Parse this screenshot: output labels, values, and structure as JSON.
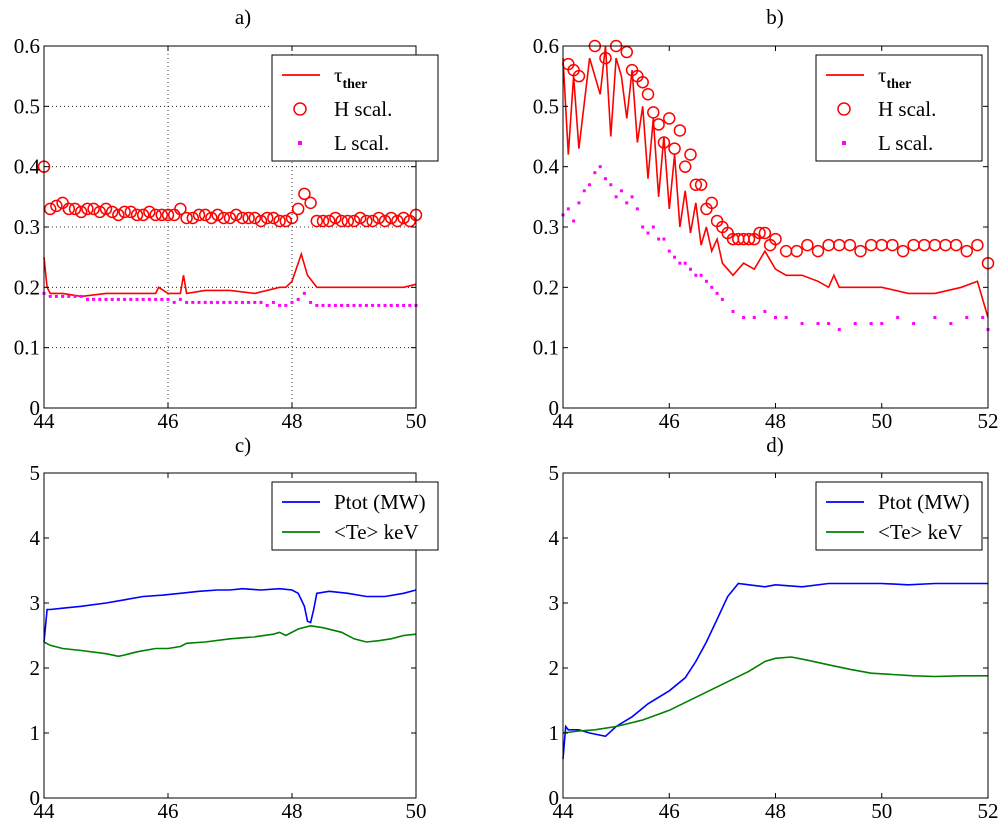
{
  "chart_data": [
    {
      "panel": "a",
      "type": "line",
      "title": "a)",
      "xlim": [
        44,
        50
      ],
      "ylim": [
        0,
        0.6
      ],
      "xticks": [
        "44",
        "46",
        "48",
        "50"
      ],
      "yticks": [
        "0",
        "0.1",
        "0.2",
        "0.3",
        "0.4",
        "0.5",
        "0.6"
      ],
      "grid": true,
      "legend_position": "top-right",
      "series": [
        {
          "name": "τ",
          "subscript": "ther",
          "kind": "line",
          "color": "#ff0000",
          "x": [
            44.0,
            44.05,
            44.1,
            44.3,
            44.6,
            45.0,
            45.4,
            45.8,
            45.85,
            46.0,
            46.2,
            46.25,
            46.3,
            46.6,
            47.0,
            47.4,
            47.8,
            47.9,
            48.0,
            48.15,
            48.25,
            48.4,
            48.6,
            49.0,
            49.4,
            49.8,
            50.0
          ],
          "y": [
            0.25,
            0.2,
            0.19,
            0.19,
            0.185,
            0.19,
            0.19,
            0.19,
            0.2,
            0.19,
            0.19,
            0.22,
            0.19,
            0.195,
            0.195,
            0.19,
            0.2,
            0.2,
            0.21,
            0.255,
            0.22,
            0.2,
            0.2,
            0.2,
            0.2,
            0.2,
            0.205
          ]
        },
        {
          "name": "H scal.",
          "kind": "circle",
          "color": "#ff0000",
          "x": [
            44.0,
            44.1,
            44.2,
            44.3,
            44.4,
            44.5,
            44.6,
            44.7,
            44.8,
            44.9,
            45.0,
            45.1,
            45.2,
            45.3,
            45.4,
            45.5,
            45.6,
            45.7,
            45.8,
            45.9,
            46.0,
            46.1,
            46.2,
            46.3,
            46.4,
            46.5,
            46.6,
            46.7,
            46.8,
            46.9,
            47.0,
            47.1,
            47.2,
            47.3,
            47.4,
            47.5,
            47.6,
            47.7,
            47.8,
            47.9,
            48.0,
            48.1,
            48.2,
            48.3,
            48.4,
            48.5,
            48.6,
            48.7,
            48.8,
            48.9,
            49.0,
            49.1,
            49.2,
            49.3,
            49.4,
            49.5,
            49.6,
            49.7,
            49.8,
            49.9,
            50.0
          ],
          "y": [
            0.4,
            0.33,
            0.335,
            0.34,
            0.33,
            0.33,
            0.325,
            0.33,
            0.33,
            0.325,
            0.33,
            0.325,
            0.32,
            0.325,
            0.325,
            0.32,
            0.32,
            0.325,
            0.32,
            0.32,
            0.32,
            0.32,
            0.33,
            0.315,
            0.315,
            0.32,
            0.32,
            0.315,
            0.32,
            0.315,
            0.315,
            0.32,
            0.315,
            0.315,
            0.315,
            0.31,
            0.315,
            0.315,
            0.31,
            0.31,
            0.315,
            0.33,
            0.355,
            0.34,
            0.31,
            0.31,
            0.31,
            0.315,
            0.31,
            0.31,
            0.31,
            0.315,
            0.31,
            0.31,
            0.315,
            0.31,
            0.315,
            0.31,
            0.315,
            0.31,
            0.32
          ]
        },
        {
          "name": "L scal.",
          "kind": "dot",
          "color": "#ff00ff",
          "x": [
            44.0,
            44.1,
            44.2,
            44.3,
            44.4,
            44.5,
            44.6,
            44.7,
            44.8,
            44.9,
            45.0,
            45.1,
            45.2,
            45.3,
            45.4,
            45.5,
            45.6,
            45.7,
            45.8,
            45.9,
            46.0,
            46.1,
            46.2,
            46.3,
            46.4,
            46.5,
            46.6,
            46.7,
            46.8,
            46.9,
            47.0,
            47.1,
            47.2,
            47.3,
            47.4,
            47.5,
            47.6,
            47.7,
            47.8,
            47.9,
            48.0,
            48.1,
            48.2,
            48.3,
            48.4,
            48.5,
            48.6,
            48.7,
            48.8,
            48.9,
            49.0,
            49.1,
            49.2,
            49.3,
            49.4,
            49.5,
            49.6,
            49.7,
            49.8,
            49.9,
            50.0
          ],
          "y": [
            0.19,
            0.185,
            0.185,
            0.185,
            0.185,
            0.185,
            0.185,
            0.18,
            0.18,
            0.18,
            0.18,
            0.18,
            0.18,
            0.18,
            0.18,
            0.18,
            0.18,
            0.18,
            0.18,
            0.18,
            0.18,
            0.175,
            0.18,
            0.175,
            0.175,
            0.175,
            0.175,
            0.175,
            0.175,
            0.175,
            0.175,
            0.175,
            0.175,
            0.175,
            0.175,
            0.175,
            0.17,
            0.175,
            0.17,
            0.17,
            0.175,
            0.18,
            0.19,
            0.175,
            0.17,
            0.17,
            0.17,
            0.17,
            0.17,
            0.17,
            0.17,
            0.17,
            0.17,
            0.17,
            0.17,
            0.17,
            0.17,
            0.17,
            0.17,
            0.17,
            0.17
          ]
        }
      ]
    },
    {
      "panel": "b",
      "type": "line",
      "title": "b)",
      "xlim": [
        44,
        52
      ],
      "ylim": [
        0,
        0.6
      ],
      "xticks": [
        "44",
        "46",
        "48",
        "50",
        "52"
      ],
      "yticks": [
        "0",
        "0.1",
        "0.2",
        "0.3",
        "0.4",
        "0.5",
        "0.6"
      ],
      "grid": false,
      "legend_position": "top-right",
      "series": [
        {
          "name": "τ",
          "subscript": "ther",
          "kind": "line",
          "color": "#ff0000",
          "x": [
            44.0,
            44.1,
            44.2,
            44.3,
            44.5,
            44.7,
            44.8,
            44.9,
            45.0,
            45.1,
            45.2,
            45.3,
            45.4,
            45.5,
            45.6,
            45.7,
            45.8,
            45.9,
            46.0,
            46.1,
            46.2,
            46.3,
            46.4,
            46.5,
            46.6,
            46.7,
            46.8,
            46.9,
            47.0,
            47.2,
            47.4,
            47.6,
            47.8,
            48.0,
            48.2,
            48.5,
            48.8,
            49.0,
            49.1,
            49.2,
            49.5,
            50.0,
            50.5,
            51.0,
            51.5,
            51.8,
            52.0
          ],
          "y": [
            0.58,
            0.42,
            0.55,
            0.43,
            0.58,
            0.52,
            0.6,
            0.45,
            0.58,
            0.55,
            0.48,
            0.56,
            0.44,
            0.5,
            0.38,
            0.48,
            0.35,
            0.45,
            0.33,
            0.42,
            0.3,
            0.36,
            0.29,
            0.34,
            0.27,
            0.3,
            0.26,
            0.28,
            0.24,
            0.22,
            0.24,
            0.23,
            0.26,
            0.23,
            0.22,
            0.22,
            0.21,
            0.2,
            0.22,
            0.2,
            0.2,
            0.2,
            0.19,
            0.19,
            0.2,
            0.21,
            0.15
          ]
        },
        {
          "name": "H scal.",
          "kind": "circle",
          "color": "#ff0000",
          "x": [
            44.1,
            44.2,
            44.3,
            44.6,
            44.8,
            45.0,
            45.2,
            45.3,
            45.4,
            45.5,
            45.6,
            45.7,
            45.8,
            45.9,
            46.0,
            46.1,
            46.2,
            46.3,
            46.4,
            46.5,
            46.6,
            46.7,
            46.8,
            46.9,
            47.0,
            47.1,
            47.2,
            47.3,
            47.4,
            47.5,
            47.6,
            47.7,
            47.8,
            47.9,
            48.0,
            48.2,
            48.4,
            48.6,
            48.8,
            49.0,
            49.2,
            49.4,
            49.6,
            49.8,
            50.0,
            50.2,
            50.4,
            50.6,
            50.8,
            51.0,
            51.2,
            51.4,
            51.6,
            51.8,
            52.0
          ],
          "y": [
            0.57,
            0.56,
            0.55,
            0.6,
            0.58,
            0.6,
            0.59,
            0.56,
            0.55,
            0.54,
            0.52,
            0.49,
            0.47,
            0.44,
            0.48,
            0.43,
            0.46,
            0.4,
            0.42,
            0.37,
            0.37,
            0.33,
            0.34,
            0.31,
            0.3,
            0.29,
            0.28,
            0.28,
            0.28,
            0.28,
            0.28,
            0.29,
            0.29,
            0.27,
            0.28,
            0.26,
            0.26,
            0.27,
            0.26,
            0.27,
            0.27,
            0.27,
            0.26,
            0.27,
            0.27,
            0.27,
            0.26,
            0.27,
            0.27,
            0.27,
            0.27,
            0.27,
            0.26,
            0.27,
            0.24
          ]
        },
        {
          "name": "L scal.",
          "kind": "dot",
          "color": "#ff00ff",
          "x": [
            44.0,
            44.1,
            44.2,
            44.3,
            44.4,
            44.5,
            44.6,
            44.7,
            44.8,
            44.9,
            45.0,
            45.1,
            45.2,
            45.3,
            45.4,
            45.5,
            45.6,
            45.7,
            45.8,
            45.9,
            46.0,
            46.1,
            46.2,
            46.3,
            46.4,
            46.5,
            46.6,
            46.7,
            46.8,
            46.9,
            47.0,
            47.2,
            47.4,
            47.6,
            47.8,
            48.0,
            48.2,
            48.5,
            48.8,
            49.0,
            49.2,
            49.5,
            49.8,
            50.0,
            50.3,
            50.6,
            51.0,
            51.3,
            51.6,
            51.9,
            52.0
          ],
          "y": [
            0.32,
            0.33,
            0.31,
            0.34,
            0.36,
            0.37,
            0.39,
            0.4,
            0.38,
            0.37,
            0.35,
            0.36,
            0.34,
            0.35,
            0.33,
            0.3,
            0.29,
            0.3,
            0.28,
            0.28,
            0.26,
            0.25,
            0.24,
            0.24,
            0.23,
            0.22,
            0.22,
            0.21,
            0.2,
            0.19,
            0.18,
            0.16,
            0.15,
            0.15,
            0.16,
            0.15,
            0.15,
            0.14,
            0.14,
            0.14,
            0.13,
            0.14,
            0.14,
            0.14,
            0.15,
            0.14,
            0.15,
            0.14,
            0.15,
            0.15,
            0.13
          ]
        }
      ]
    },
    {
      "panel": "c",
      "type": "line",
      "title": "c)",
      "xlim": [
        44,
        50
      ],
      "ylim": [
        0,
        5
      ],
      "xticks": [
        "44",
        "46",
        "48",
        "50"
      ],
      "yticks": [
        "0",
        "1",
        "2",
        "3",
        "4",
        "5"
      ],
      "grid": false,
      "legend_position": "top-right",
      "series": [
        {
          "name": "Ptot (MW)",
          "kind": "line",
          "color": "#0000ff",
          "x": [
            44.0,
            44.05,
            44.1,
            44.3,
            44.6,
            45.0,
            45.3,
            45.6,
            45.9,
            46.2,
            46.5,
            46.8,
            47.0,
            47.2,
            47.5,
            47.8,
            48.0,
            48.1,
            48.2,
            48.25,
            48.3,
            48.35,
            48.4,
            48.6,
            48.9,
            49.2,
            49.5,
            49.8,
            50.0
          ],
          "y": [
            2.4,
            2.9,
            2.9,
            2.92,
            2.95,
            3.0,
            3.05,
            3.1,
            3.12,
            3.15,
            3.18,
            3.2,
            3.2,
            3.22,
            3.2,
            3.22,
            3.2,
            3.15,
            2.95,
            2.72,
            2.7,
            2.9,
            3.15,
            3.18,
            3.15,
            3.1,
            3.1,
            3.15,
            3.2
          ]
        },
        {
          "name": "<Te> keV",
          "kind": "line",
          "color": "#008000",
          "x": [
            44.0,
            44.1,
            44.3,
            44.6,
            45.0,
            45.2,
            45.3,
            45.5,
            45.8,
            46.0,
            46.2,
            46.3,
            46.6,
            47.0,
            47.4,
            47.7,
            47.8,
            47.9,
            48.1,
            48.3,
            48.5,
            48.8,
            49.0,
            49.2,
            49.4,
            49.6,
            49.8,
            50.0
          ],
          "y": [
            2.4,
            2.35,
            2.3,
            2.27,
            2.22,
            2.18,
            2.2,
            2.25,
            2.3,
            2.3,
            2.33,
            2.38,
            2.4,
            2.45,
            2.48,
            2.52,
            2.55,
            2.5,
            2.6,
            2.65,
            2.62,
            2.55,
            2.45,
            2.4,
            2.42,
            2.45,
            2.5,
            2.52
          ]
        }
      ]
    },
    {
      "panel": "d",
      "type": "line",
      "title": "d)",
      "xlim": [
        44,
        52
      ],
      "ylim": [
        0,
        5
      ],
      "xticks": [
        "44",
        "46",
        "48",
        "50",
        "52"
      ],
      "yticks": [
        "0",
        "1",
        "2",
        "3",
        "4",
        "5"
      ],
      "grid": false,
      "legend_position": "top-right",
      "series": [
        {
          "name": "Ptot (MW)",
          "kind": "line",
          "color": "#0000ff",
          "x": [
            44.0,
            44.05,
            44.1,
            44.3,
            44.5,
            44.8,
            45.0,
            45.3,
            45.6,
            46.0,
            46.3,
            46.5,
            46.7,
            46.9,
            47.1,
            47.3,
            47.5,
            47.8,
            48.0,
            48.5,
            49.0,
            49.5,
            50.0,
            50.5,
            51.0,
            51.5,
            52.0
          ],
          "y": [
            0.6,
            1.1,
            1.05,
            1.05,
            1.0,
            0.95,
            1.1,
            1.25,
            1.45,
            1.65,
            1.85,
            2.1,
            2.4,
            2.75,
            3.1,
            3.3,
            3.28,
            3.25,
            3.28,
            3.25,
            3.3,
            3.3,
            3.3,
            3.28,
            3.3,
            3.3,
            3.3
          ]
        },
        {
          "name": "<Te> keV",
          "kind": "line",
          "color": "#008000",
          "x": [
            44.0,
            44.3,
            44.6,
            45.0,
            45.5,
            46.0,
            46.5,
            47.0,
            47.5,
            47.8,
            48.0,
            48.3,
            48.6,
            49.0,
            49.4,
            49.8,
            50.2,
            50.6,
            51.0,
            51.5,
            52.0
          ],
          "y": [
            1.0,
            1.03,
            1.05,
            1.1,
            1.2,
            1.35,
            1.55,
            1.75,
            1.95,
            2.1,
            2.15,
            2.17,
            2.12,
            2.05,
            1.98,
            1.92,
            1.9,
            1.88,
            1.87,
            1.88,
            1.88
          ]
        }
      ]
    }
  ]
}
